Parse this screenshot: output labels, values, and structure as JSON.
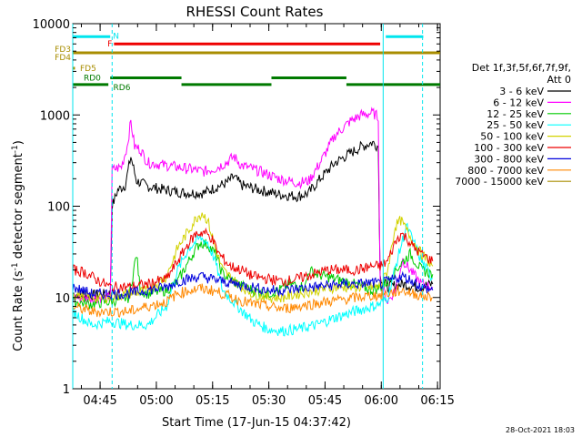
{
  "chart_data": {
    "type": "line",
    "title": "RHESSI Count Rates",
    "xlabel": "Start Time (17-Jun-15 04:37:42)",
    "ylabel": "Count Rate (s⁻¹ detector segment⁻¹)",
    "ylabel_parts": {
      "main": "Count Rate (s",
      "sup1": "-1",
      "mid": " detector segment",
      "sup2": "-1",
      "end": ")"
    },
    "yscale": "log",
    "ylim": [
      1,
      10000
    ],
    "xlim_minutes": [
      0,
      98
    ],
    "x_ticks": [
      {
        "label": "04:45",
        "min": 7.3
      },
      {
        "label": "05:00",
        "min": 22.3
      },
      {
        "label": "05:15",
        "min": 37.3
      },
      {
        "label": "05:30",
        "min": 52.3
      },
      {
        "label": "05:45",
        "min": 67.3
      },
      {
        "label": "06:00",
        "min": 82.3
      },
      {
        "label": "06:15",
        "min": 97.3
      }
    ],
    "y_ticks": [
      {
        "label": "1",
        "value": 1
      },
      {
        "label": "10",
        "value": 10
      },
      {
        "label": "100",
        "value": 100
      },
      {
        "label": "1000",
        "value": 1000
      },
      {
        "label": "10000",
        "value": 10000
      }
    ],
    "legend_header": [
      "Det 1f,3f,5f,6f,7f,9f,",
      "Att 0"
    ],
    "series": [
      {
        "name": "3 - 6 keV",
        "color": "#000000",
        "points": [
          [
            0,
            11
          ],
          [
            5,
            10.5
          ],
          [
            10,
            11
          ],
          [
            10.5,
            100
          ],
          [
            12,
            150
          ],
          [
            14,
            170
          ],
          [
            15.5,
            350
          ],
          [
            17,
            190
          ],
          [
            20,
            165
          ],
          [
            25,
            150
          ],
          [
            30,
            140
          ],
          [
            35,
            140
          ],
          [
            38,
            160
          ],
          [
            41,
            180
          ],
          [
            43,
            210
          ],
          [
            45,
            170
          ],
          [
            50,
            150
          ],
          [
            55,
            135
          ],
          [
            60,
            128
          ],
          [
            63,
            140
          ],
          [
            66,
            200
          ],
          [
            70,
            300
          ],
          [
            74,
            380
          ],
          [
            77,
            450
          ],
          [
            80,
            500
          ],
          [
            81.5,
            450
          ],
          [
            82,
            17
          ],
          [
            84,
            13
          ],
          [
            88,
            14
          ],
          [
            92,
            13
          ],
          [
            96,
            14
          ]
        ]
      },
      {
        "name": "6 - 12 keV",
        "color": "#ff00ff",
        "points": [
          [
            0,
            10
          ],
          [
            5,
            9.8
          ],
          [
            10,
            10
          ],
          [
            10.5,
            250
          ],
          [
            13,
            270
          ],
          [
            14.5,
            450
          ],
          [
            15.5,
            850
          ],
          [
            16.5,
            450
          ],
          [
            18,
            420
          ],
          [
            20,
            300
          ],
          [
            25,
            280
          ],
          [
            30,
            260
          ],
          [
            35,
            240
          ],
          [
            38,
            260
          ],
          [
            41,
            300
          ],
          [
            43,
            350
          ],
          [
            45,
            280
          ],
          [
            50,
            240
          ],
          [
            55,
            200
          ],
          [
            60,
            180
          ],
          [
            63,
            190
          ],
          [
            66,
            300
          ],
          [
            70,
            600
          ],
          [
            74,
            850
          ],
          [
            77,
            1000
          ],
          [
            80,
            1050
          ],
          [
            81.5,
            950
          ],
          [
            82,
            15
          ],
          [
            84,
            9
          ],
          [
            86,
            12
          ],
          [
            88,
            26
          ],
          [
            90,
            20
          ],
          [
            93,
            14
          ],
          [
            96,
            13
          ]
        ]
      },
      {
        "name": "12 - 25 keV",
        "color": "#00cc00",
        "points": [
          [
            0,
            9
          ],
          [
            5,
            8.5
          ],
          [
            10,
            9
          ],
          [
            15,
            10
          ],
          [
            17,
            30
          ],
          [
            18,
            12
          ],
          [
            20,
            11
          ],
          [
            25,
            12
          ],
          [
            28,
            15
          ],
          [
            32,
            30
          ],
          [
            34,
            40
          ],
          [
            36,
            38
          ],
          [
            38,
            30
          ],
          [
            40,
            18
          ],
          [
            44,
            14
          ],
          [
            48,
            12
          ],
          [
            52,
            11
          ],
          [
            55,
            12
          ],
          [
            58,
            14
          ],
          [
            62,
            13
          ],
          [
            63,
            20
          ],
          [
            65,
            18
          ],
          [
            70,
            16
          ],
          [
            75,
            14
          ],
          [
            80,
            12
          ],
          [
            82,
            13
          ],
          [
            84,
            15
          ],
          [
            87,
            22
          ],
          [
            90,
            30
          ],
          [
            93,
            20
          ],
          [
            96,
            18
          ]
        ]
      },
      {
        "name": "25 - 50 keV",
        "color": "#00ffff",
        "points": [
          [
            0,
            7
          ],
          [
            5,
            5
          ],
          [
            10,
            5.5
          ],
          [
            15,
            5
          ],
          [
            20,
            5
          ],
          [
            25,
            8
          ],
          [
            28,
            20
          ],
          [
            31,
            35
          ],
          [
            34,
            45
          ],
          [
            36,
            40
          ],
          [
            38,
            25
          ],
          [
            40,
            12
          ],
          [
            44,
            8
          ],
          [
            48,
            5.5
          ],
          [
            52,
            4.5
          ],
          [
            56,
            4.3
          ],
          [
            60,
            4.5
          ],
          [
            65,
            5
          ],
          [
            70,
            6
          ],
          [
            75,
            7
          ],
          [
            80,
            8
          ],
          [
            82,
            8.5
          ],
          [
            84,
            10
          ],
          [
            87,
            30
          ],
          [
            89,
            60
          ],
          [
            91,
            40
          ],
          [
            93,
            25
          ],
          [
            96,
            16
          ]
        ]
      },
      {
        "name": "50 - 100 keV",
        "color": "#d2d200",
        "points": [
          [
            0,
            11
          ],
          [
            5,
            10
          ],
          [
            10,
            10
          ],
          [
            15,
            11
          ],
          [
            20,
            12
          ],
          [
            25,
            17
          ],
          [
            28,
            35
          ],
          [
            31,
            55
          ],
          [
            33,
            75
          ],
          [
            34.5,
            85
          ],
          [
            36,
            70
          ],
          [
            38,
            35
          ],
          [
            40,
            20
          ],
          [
            44,
            14
          ],
          [
            48,
            11
          ],
          [
            52,
            10
          ],
          [
            56,
            10
          ],
          [
            60,
            11
          ],
          [
            65,
            12
          ],
          [
            70,
            13
          ],
          [
            75,
            13
          ],
          [
            80,
            13
          ],
          [
            82,
            13
          ],
          [
            84,
            20
          ],
          [
            86,
            60
          ],
          [
            87.5,
            70
          ],
          [
            89,
            55
          ],
          [
            91,
            40
          ],
          [
            93,
            30
          ],
          [
            96,
            22
          ]
        ]
      },
      {
        "name": "100 - 300 keV",
        "color": "#ee0000",
        "points": [
          [
            0,
            20
          ],
          [
            3,
            19
          ],
          [
            6,
            16
          ],
          [
            10,
            13
          ],
          [
            15,
            13
          ],
          [
            20,
            14
          ],
          [
            25,
            16
          ],
          [
            28,
            25
          ],
          [
            31,
            40
          ],
          [
            33,
            50
          ],
          [
            35,
            52
          ],
          [
            37,
            45
          ],
          [
            39,
            30
          ],
          [
            42,
            22
          ],
          [
            45,
            20
          ],
          [
            48,
            17
          ],
          [
            52,
            16
          ],
          [
            56,
            15
          ],
          [
            60,
            16
          ],
          [
            64,
            18
          ],
          [
            68,
            20
          ],
          [
            72,
            20
          ],
          [
            76,
            20
          ],
          [
            80,
            22
          ],
          [
            82,
            22
          ],
          [
            84,
            25
          ],
          [
            86,
            40
          ],
          [
            87.5,
            50
          ],
          [
            89,
            45
          ],
          [
            91,
            35
          ],
          [
            93,
            30
          ],
          [
            96,
            25
          ]
        ]
      },
      {
        "name": "300 - 800 keV",
        "color": "#0000dd",
        "points": [
          [
            0,
            13
          ],
          [
            5,
            11
          ],
          [
            10,
            11
          ],
          [
            15,
            11
          ],
          [
            20,
            12
          ],
          [
            25,
            13
          ],
          [
            28,
            15
          ],
          [
            31,
            16
          ],
          [
            34,
            17
          ],
          [
            37,
            16
          ],
          [
            40,
            15
          ],
          [
            44,
            14
          ],
          [
            48,
            13
          ],
          [
            52,
            12
          ],
          [
            56,
            12
          ],
          [
            60,
            12.5
          ],
          [
            64,
            13
          ],
          [
            68,
            13.5
          ],
          [
            72,
            14
          ],
          [
            76,
            14
          ],
          [
            80,
            14.5
          ],
          [
            82,
            14
          ],
          [
            84,
            15
          ],
          [
            86,
            16
          ],
          [
            88,
            17
          ],
          [
            91,
            15
          ],
          [
            93,
            13
          ],
          [
            96,
            12
          ]
        ]
      },
      {
        "name": "800 - 7000 keV",
        "color": "#ff8800",
        "points": [
          [
            0,
            8
          ],
          [
            5,
            7
          ],
          [
            10,
            7
          ],
          [
            15,
            7
          ],
          [
            20,
            8
          ],
          [
            25,
            9
          ],
          [
            28,
            11
          ],
          [
            31,
            12
          ],
          [
            34,
            12.5
          ],
          [
            37,
            12
          ],
          [
            40,
            11
          ],
          [
            44,
            9.5
          ],
          [
            48,
            8.5
          ],
          [
            52,
            8
          ],
          [
            56,
            7.5
          ],
          [
            60,
            8
          ],
          [
            64,
            8.5
          ],
          [
            68,
            9
          ],
          [
            72,
            9.5
          ],
          [
            76,
            10
          ],
          [
            80,
            10.5
          ],
          [
            82,
            10.5
          ],
          [
            84,
            11
          ],
          [
            86,
            11.5
          ],
          [
            88,
            12
          ],
          [
            91,
            11
          ],
          [
            93,
            10.5
          ],
          [
            96,
            10
          ]
        ]
      },
      {
        "name": "7000 - 15000 keV",
        "color": "#a88d00",
        "points": []
      }
    ],
    "attenuator_flags": [
      {
        "label": "N",
        "color": "#00e5ee",
        "segments": [
          [
            0,
            10
          ]
        ],
        "level": 7200
      },
      {
        "label": "N",
        "color": "#00e5ee",
        "segments": [
          [
            83.5,
            93.5
          ]
        ],
        "level": 7200
      },
      {
        "label": "F",
        "color": "#ee0000",
        "segments": [
          [
            11,
            82
          ]
        ],
        "level": 6000
      },
      {
        "label": "FD3",
        "color": "#a88d00",
        "segments": [
          [
            0,
            98
          ]
        ],
        "level": 4800
      },
      {
        "label": "FD4",
        "color": "#a88d00",
        "segments": [
          [
            0,
            98
          ]
        ],
        "level": 4800
      },
      {
        "label": "FD5",
        "color": "#a88d00",
        "segments": [
          [
            0,
            0.6
          ]
        ],
        "level": 3250
      },
      {
        "label": "RD0",
        "color": "#007a00",
        "segments": [
          [
            10,
            29
          ],
          [
            53,
            73
          ]
        ],
        "level": 2550
      },
      {
        "label": "RD6",
        "color": "#007a00",
        "segments": [
          [
            0,
            9.5
          ],
          [
            29,
            53
          ],
          [
            73,
            98
          ]
        ],
        "level": 2150
      }
    ],
    "vertical_markers_minutes": [
      {
        "x": 0,
        "color": "#00e5ee",
        "style": "solid"
      },
      {
        "x": 10.5,
        "color": "#00e5ee",
        "style": "dashed"
      },
      {
        "x": 82.8,
        "color": "#00e5ee",
        "style": "solid"
      },
      {
        "x": 93.3,
        "color": "#00e5ee",
        "style": "dashed"
      }
    ]
  },
  "footer": {
    "timestamp": "28-Oct-2021 18:03"
  }
}
